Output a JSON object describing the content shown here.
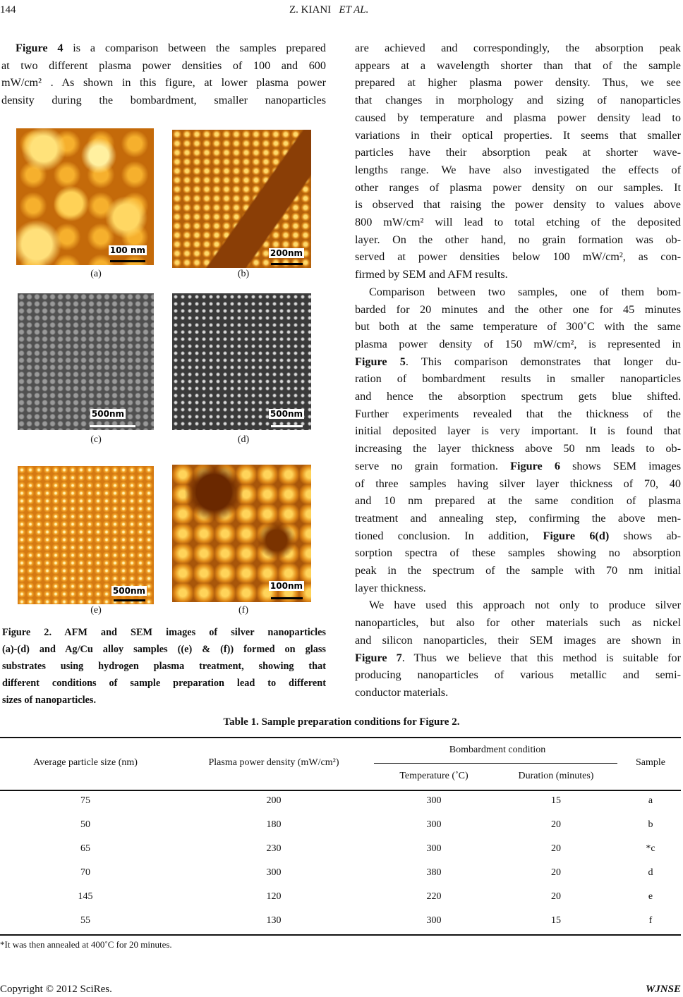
{
  "header": {
    "page_number": "144",
    "authors": "Z. KIANI",
    "etal": "ET AL."
  },
  "left_column": [
    [
      {
        "b": "Figure 4"
      },
      " is a comparison between the samples prepared"
    ],
    [
      "at two different plasma power densities of 100 and 600"
    ],
    [
      "mW/cm² . As shown in this figure, at lower plasma power"
    ],
    [
      "density during the bombardment, smaller nanoparticles"
    ]
  ],
  "right_column": [
    [
      "are achieved and correspondingly, the absorption peak"
    ],
    [
      "appears at a wavelength shorter than that of the sample"
    ],
    [
      "prepared at higher plasma power density. Thus, we see"
    ],
    [
      "that changes in morphology and sizing of nanoparticles"
    ],
    [
      "caused by temperature and plasma power density lead to"
    ],
    [
      "variations in their optical properties. It seems that smaller"
    ],
    [
      "particles have their absorption peak at shorter wave-"
    ],
    [
      "lengths range. We have also investigated the effects of"
    ],
    [
      "other ranges of plasma power density on our samples. It"
    ],
    [
      "is observed that raising the power density to values above"
    ],
    [
      "800 mW/cm² will lead to total etching of the deposited"
    ],
    [
      "layer. On the other hand, no grain formation was ob-"
    ],
    [
      "served at power densities below 100 mW/cm², as con-"
    ],
    [
      "firmed by SEM and AFM results."
    ],
    [
      "Comparison between two samples, one of them bom-"
    ],
    [
      "barded for 20 minutes and the other one for 45 minutes"
    ],
    [
      "but both at the same temperature of 300˚C with the same"
    ],
    [
      "plasma power density of 150 mW/cm², is represented in"
    ],
    [
      {
        "b": "Figure 5"
      },
      ". This comparison demonstrates that longer du-"
    ],
    [
      "ration of bombardment results in smaller nanoparticles"
    ],
    [
      "and hence the absorption spectrum gets blue shifted."
    ],
    [
      "Further experiments revealed that the thickness of the"
    ],
    [
      "initial deposited layer is very important. It is found that"
    ],
    [
      "increasing the layer thickness above 50 nm leads to ob-"
    ],
    [
      "serve no grain formation. ",
      {
        "b": "Figure 6"
      },
      " shows SEM images"
    ],
    [
      "of three samples having silver layer thickness of 70, 40"
    ],
    [
      "and 10 nm prepared at the same condition of plasma"
    ],
    [
      "treatment and annealing step, confirming the above men-"
    ],
    [
      "tioned conclusion. In addition, ",
      {
        "b": "Figure 6(d)"
      },
      " shows ab-"
    ],
    [
      "sorption spectra of these samples showing no absorption"
    ],
    [
      "peak in the spectrum of the sample with 70 nm initial"
    ],
    [
      "layer thickness."
    ],
    [
      "We have used this approach not only to produce silver"
    ],
    [
      "nanoparticles, but also for other materials such as nickel"
    ],
    [
      "and silicon nanoparticles, their SEM images are shown in"
    ],
    [
      {
        "b": "Figure 7"
      },
      ". Thus we believe that this method is suitable for"
    ],
    [
      "producing nanoparticles of various metallic and semi-"
    ],
    [
      "conductor materials."
    ]
  ],
  "figure": {
    "panels": [
      {
        "label": "(a)",
        "scale": "100 nm"
      },
      {
        "label": "(b)",
        "scale": "200nm"
      },
      {
        "label": "(c)",
        "scale": "500nm"
      },
      {
        "label": "(d)",
        "scale": "500nm"
      },
      {
        "label": "(e)",
        "scale": "500nm"
      },
      {
        "label": "(f)",
        "scale": "100nm"
      }
    ],
    "caption": [
      "Figure 2. AFM and SEM images of silver nanoparticles",
      "(a)-(d) and Ag/Cu alloy samples ((e) & (f)) formed on glass",
      "substrates using hydrogen plasma treatment, showing that",
      "different conditions of sample preparation lead to different",
      "sizes of nanoparticles."
    ]
  },
  "table": {
    "title": "Table 1. Sample preparation conditions for Figure 2.",
    "group_header": "Bombardment condition",
    "columns": [
      "Average particle size (nm)",
      "Plasma power density (mW/cm²)",
      "Temperature (˚C)",
      "Duration (minutes)",
      "Sample"
    ],
    "rows": [
      [
        "75",
        "200",
        "300",
        "15",
        "a"
      ],
      [
        "50",
        "180",
        "300",
        "20",
        "b"
      ],
      [
        "65",
        "230",
        "300",
        "20",
        "*c"
      ],
      [
        "70",
        "300",
        "380",
        "20",
        "d"
      ],
      [
        "145",
        "120",
        "220",
        "20",
        "e"
      ],
      [
        "55",
        "130",
        "300",
        "15",
        "f"
      ]
    ],
    "footnote": "*It was then annealed at 400˚C for 20 minutes."
  },
  "footer": {
    "copyright": "Copyright © 2012 SciRes.",
    "journal": "WJNSE"
  }
}
